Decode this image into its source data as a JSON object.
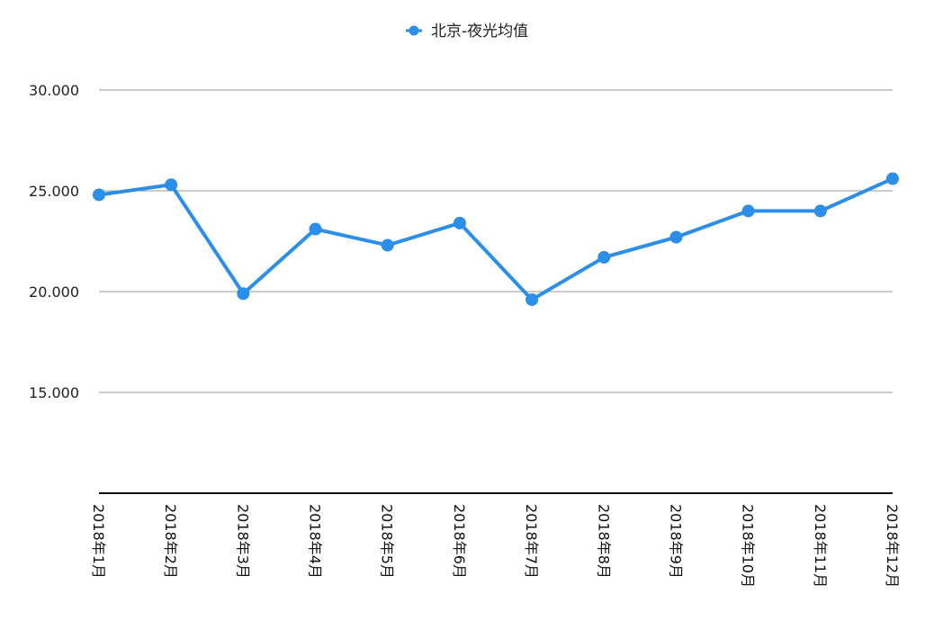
{
  "chart_data": {
    "type": "line",
    "categories": [
      "2018年1月",
      "2018年2月",
      "2018年3月",
      "2018年4月",
      "2018年5月",
      "2018年6月",
      "2018年7月",
      "2018年8月",
      "2018年9月",
      "2018年10月",
      "2018年11月",
      "2018年12月"
    ],
    "series": [
      {
        "name": "北京-夜光均值",
        "color": "#2b8ee8",
        "values": [
          24.8,
          25.3,
          19.9,
          23.1,
          22.3,
          23.4,
          19.6,
          21.7,
          22.7,
          24.0,
          24.0,
          25.6
        ]
      }
    ],
    "ylim": [
      10,
      30
    ],
    "yticks": [
      "15.000",
      "20.000",
      "25.000",
      "30.000"
    ],
    "grid": true,
    "legend": "top-center",
    "title": "",
    "xlabel": "",
    "ylabel": ""
  }
}
